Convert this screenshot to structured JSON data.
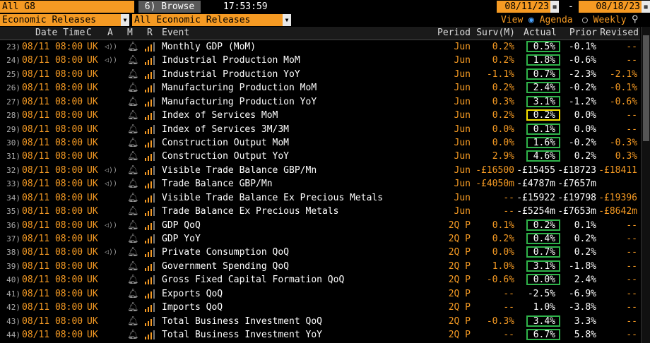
{
  "toolbar": {
    "filter": "All G8",
    "browse": "6) Browse",
    "time": "17:53:59",
    "start_date": "08/11/23",
    "date_separator": "-",
    "end_date": "08/18/23",
    "source": "Economic Releases",
    "scope": "All Economic Releases",
    "view_label": "View",
    "view_agenda": "Agenda",
    "view_weekly": "Weekly"
  },
  "columns": {
    "date_time": "Date Time",
    "country": "C",
    "alert": "A",
    "market": "M",
    "relevance": "R",
    "event": "Event",
    "period": "Period",
    "survey": "Surv(M)",
    "actual": "Actual",
    "prior": "Prior",
    "revised": "Revised"
  },
  "rows": [
    {
      "num": "23)",
      "date_time": "08/11 08:00",
      "country": "UK",
      "audio": true,
      "event": "Monthly GDP (MoM)",
      "period": "Jun",
      "survey": "0.2%",
      "actual": "0.5%",
      "prior": "-0.1%",
      "revised": "--",
      "actual_box": "#2fb34a"
    },
    {
      "num": "24)",
      "date_time": "08/11 08:00",
      "country": "UK",
      "audio": true,
      "event": "Industrial Production MoM",
      "period": "Jun",
      "survey": "0.2%",
      "actual": "1.8%",
      "prior": "-0.6%",
      "revised": "--",
      "actual_box": "#2fb34a"
    },
    {
      "num": "25)",
      "date_time": "08/11 08:00",
      "country": "UK",
      "audio": false,
      "event": "Industrial Production YoY",
      "period": "Jun",
      "survey": "-1.1%",
      "actual": "0.7%",
      "prior": "-2.3%",
      "revised": "-2.1%",
      "actual_box": "#2fb34a"
    },
    {
      "num": "26)",
      "date_time": "08/11 08:00",
      "country": "UK",
      "audio": false,
      "event": "Manufacturing Production MoM",
      "period": "Jun",
      "survey": "0.2%",
      "actual": "2.4%",
      "prior": "-0.2%",
      "revised": "-0.1%",
      "actual_box": "#2fb34a"
    },
    {
      "num": "27)",
      "date_time": "08/11 08:00",
      "country": "UK",
      "audio": false,
      "event": "Manufacturing Production YoY",
      "period": "Jun",
      "survey": "0.3%",
      "actual": "3.1%",
      "prior": "-1.2%",
      "revised": "-0.6%",
      "actual_box": "#2fb34a"
    },
    {
      "num": "28)",
      "date_time": "08/11 08:00",
      "country": "UK",
      "audio": false,
      "event": "Index of Services MoM",
      "period": "Jun",
      "survey": "0.2%",
      "actual": "0.2%",
      "prior": "0.0%",
      "revised": "--",
      "actual_box": "#f5e100"
    },
    {
      "num": "29)",
      "date_time": "08/11 08:00",
      "country": "UK",
      "audio": false,
      "event": "Index of Services 3M/3M",
      "period": "Jun",
      "survey": "0.0%",
      "actual": "0.1%",
      "prior": "0.0%",
      "revised": "--",
      "actual_box": "#2fb34a"
    },
    {
      "num": "30)",
      "date_time": "08/11 08:00",
      "country": "UK",
      "audio": false,
      "event": "Construction Output MoM",
      "period": "Jun",
      "survey": "0.0%",
      "actual": "1.6%",
      "prior": "-0.2%",
      "revised": "-0.3%",
      "actual_box": "#2fb34a"
    },
    {
      "num": "31)",
      "date_time": "08/11 08:00",
      "country": "UK",
      "audio": false,
      "event": "Construction Output YoY",
      "period": "Jun",
      "survey": "2.9%",
      "actual": "4.6%",
      "prior": "0.2%",
      "revised": "0.3%",
      "actual_box": "#2fb34a"
    },
    {
      "num": "32)",
      "date_time": "08/11 08:00",
      "country": "UK",
      "audio": true,
      "event": "Visible Trade Balance GBP/Mn",
      "period": "Jun",
      "survey": "-£16500",
      "actual": "-£15455",
      "prior": "-£18723",
      "revised": "-£18411"
    },
    {
      "num": "33)",
      "date_time": "08/11 08:00",
      "country": "UK",
      "audio": true,
      "event": "Trade Balance GBP/Mn",
      "period": "Jun",
      "survey": "-£4050m",
      "actual": "-£4787m",
      "prior": "-£7657m"
    },
    {
      "num": "34)",
      "date_time": "08/11 08:00",
      "country": "UK",
      "audio": false,
      "event": "Visible Trade Balance Ex Precious Metals",
      "period": "Jun",
      "survey": "--",
      "actual": "-£15922",
      "prior": "-£19798",
      "revised": "-£19396"
    },
    {
      "num": "35)",
      "date_time": "08/11 08:00",
      "country": "UK",
      "audio": false,
      "event": "Trade Balance Ex Precious Metals",
      "period": "Jun",
      "survey": "--",
      "actual": "-£5254m",
      "prior": "-£7653m",
      "revised": "-£8642m"
    },
    {
      "num": "36)",
      "date_time": "08/11 08:00",
      "country": "UK",
      "audio": true,
      "event": "GDP QoQ",
      "period": "2Q P",
      "survey": "0.1%",
      "actual": "0.2%",
      "prior": "0.1%",
      "revised": "--",
      "actual_box": "#2fb34a"
    },
    {
      "num": "37)",
      "date_time": "08/11 08:00",
      "country": "UK",
      "audio": false,
      "event": "GDP YoY",
      "period": "2Q P",
      "survey": "0.2%",
      "actual": "0.4%",
      "prior": "0.2%",
      "revised": "--",
      "actual_box": "#2fb34a"
    },
    {
      "num": "38)",
      "date_time": "08/11 08:00",
      "country": "UK",
      "audio": true,
      "event": "Private Consumption QoQ",
      "period": "2Q P",
      "survey": "0.0%",
      "actual": "0.7%",
      "prior": "0.2%",
      "revised": "--",
      "actual_box": "#2fb34a"
    },
    {
      "num": "39)",
      "date_time": "08/11 08:00",
      "country": "UK",
      "audio": false,
      "event": "Government Spending QoQ",
      "period": "2Q P",
      "survey": "1.0%",
      "actual": "3.1%",
      "prior": "-1.8%",
      "revised": "--",
      "actual_box": "#2fb34a"
    },
    {
      "num": "40)",
      "date_time": "08/11 08:00",
      "country": "UK",
      "audio": false,
      "event": "Gross Fixed Capital Formation QoQ",
      "period": "2Q P",
      "survey": "-0.6%",
      "actual": "0.0%",
      "prior": "2.4%",
      "revised": "--",
      "actual_box": "#2fb34a"
    },
    {
      "num": "41)",
      "date_time": "08/11 08:00",
      "country": "UK",
      "audio": false,
      "event": "Exports QoQ",
      "period": "2Q P",
      "survey": "--",
      "actual": "-2.5%",
      "prior": "-6.9%",
      "revised": "--"
    },
    {
      "num": "42)",
      "date_time": "08/11 08:00",
      "country": "UK",
      "audio": false,
      "event": "Imports QoQ",
      "period": "2Q P",
      "survey": "--",
      "actual": "1.0%",
      "prior": "-3.8%",
      "revised": "--"
    },
    {
      "num": "43)",
      "date_time": "08/11 08:00",
      "country": "UK",
      "audio": false,
      "event": "Total Business Investment QoQ",
      "period": "2Q P",
      "survey": "-0.3%",
      "actual": "3.4%",
      "prior": "3.3%",
      "revised": "--",
      "actual_box": "#2fb34a"
    },
    {
      "num": "44)",
      "date_time": "08/11 08:00",
      "country": "UK",
      "audio": false,
      "event": "Total Business Investment YoY",
      "period": "2Q P",
      "survey": "--",
      "actual": "6.7%",
      "prior": "5.8%",
      "revised": "--",
      "actual_box": "#2fb34a"
    }
  ]
}
